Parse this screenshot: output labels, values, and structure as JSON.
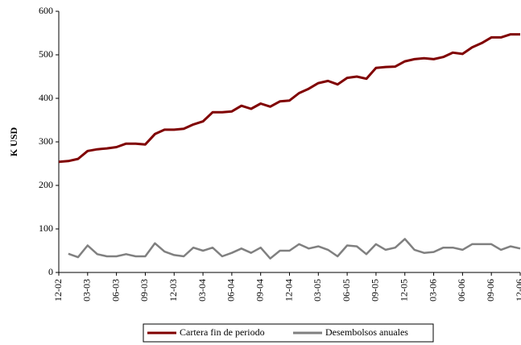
{
  "chart_data": {
    "type": "line",
    "y_label": "K USD",
    "categories": [
      "12-02",
      null,
      null,
      "03-03",
      null,
      null,
      "06-03",
      null,
      null,
      "09-03",
      null,
      null,
      "12-03",
      null,
      null,
      "03-04",
      null,
      null,
      "06-04",
      null,
      null,
      "09-04",
      null,
      null,
      "12-04",
      null,
      null,
      "03-05",
      null,
      null,
      "06-05",
      null,
      null,
      "09-05",
      null,
      null,
      "12-05",
      null,
      null,
      "03-06",
      null,
      null,
      "06-06",
      null,
      null,
      "09-06",
      null,
      null,
      "12-06"
    ],
    "series": [
      {
        "name": "Cartera fin de periodo",
        "color": "#800000",
        "values": [
          254,
          256,
          261,
          279,
          283,
          285,
          288,
          296,
          296,
          294,
          318,
          328,
          328,
          330,
          340,
          347,
          368,
          368,
          370,
          383,
          376,
          388,
          381,
          393,
          395,
          412,
          422,
          435,
          440,
          432,
          447,
          450,
          445,
          470,
          472,
          473,
          485,
          490,
          492,
          490,
          495,
          505,
          502,
          517,
          527,
          540,
          540,
          547,
          547
        ]
      },
      {
        "name": "Desembolsos anuales",
        "color": "#808080",
        "values": [
          null,
          43,
          35,
          62,
          42,
          37,
          37,
          42,
          37,
          37,
          67,
          48,
          40,
          37,
          57,
          50,
          57,
          37,
          45,
          55,
          45,
          57,
          32,
          50,
          50,
          65,
          55,
          60,
          52,
          37,
          62,
          60,
          42,
          65,
          52,
          57,
          77,
          52,
          45,
          47,
          57,
          57,
          52,
          65,
          65,
          65,
          52,
          60,
          55
        ]
      }
    ],
    "ylim": [
      0,
      600
    ],
    "yticks": [
      0,
      100,
      200,
      300,
      400,
      500,
      600
    ]
  }
}
